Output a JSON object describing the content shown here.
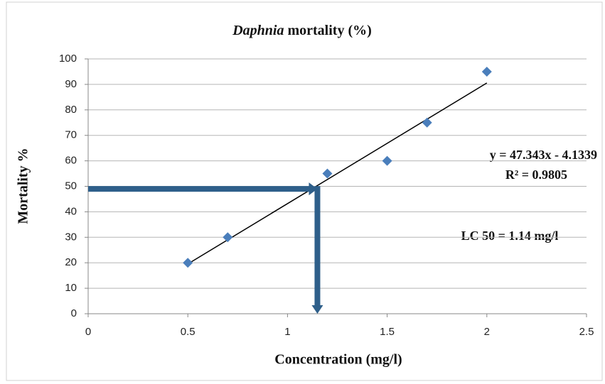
{
  "chart_data": {
    "type": "scatter",
    "title_italic": "Daphnia",
    "title_rest": "mortality  (%)",
    "x_label": "Concentration  (mg/l)",
    "y_label": "Mortality  %",
    "series": [
      {
        "name": "Mortality",
        "color": "#4a7ebb",
        "x": [
          0.5,
          0.7,
          1.2,
          1.5,
          1.7,
          2
        ],
        "values": [
          20,
          30,
          55,
          60,
          75,
          95
        ]
      }
    ],
    "trendline": {
      "slope": 47.343,
      "intercept": -4.1339,
      "x_range": [
        0.5,
        2
      ],
      "color": "#000000",
      "equation_label": "y = 47.343x - 4.1339",
      "r2_label": "R² = 0.9805"
    },
    "lc50_label": "LC 50 = 1.14 mg/l",
    "lc50_arrow": {
      "x": 1.15,
      "y": 49,
      "color": "#2e5f8a"
    },
    "xlim": [
      0,
      2.5
    ],
    "xticks": [
      0,
      0.5,
      1,
      1.5,
      2,
      2.5
    ],
    "ylim": [
      0,
      100
    ],
    "yticks": [
      0,
      10,
      20,
      30,
      40,
      50,
      60,
      70,
      80,
      90,
      100
    ],
    "grid": true
  }
}
